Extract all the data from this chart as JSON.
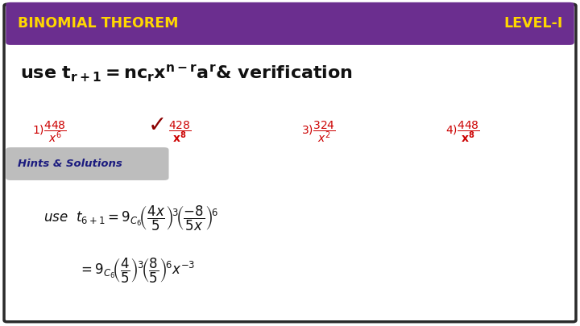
{
  "title_left": "BINOMIAL THEOREM",
  "title_right": "LEVEL-I",
  "title_bg": "#6B2E8F",
  "title_text_color": "#FFD700",
  "bg_color": "#FFFFFF",
  "border_color": "#2a2a2a",
  "hints_label": "Hints & Solutions",
  "hints_bg": "#BDBDBD",
  "opt_color": "#CC0000",
  "math_color": "#111111"
}
